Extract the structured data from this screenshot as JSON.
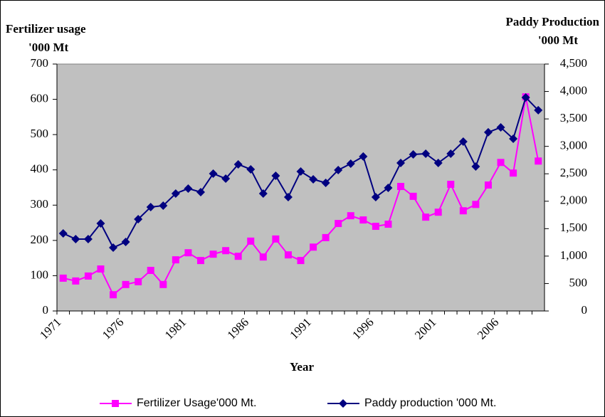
{
  "chart_data": {
    "type": "line",
    "y_label": [
      "Fertilizer usage",
      "'000 Mt"
    ],
    "y2_label": [
      "Paddy Production",
      "'000 Mt"
    ],
    "x_label": "Year",
    "categories": [
      "1971",
      null,
      null,
      null,
      null,
      "1976",
      null,
      null,
      null,
      null,
      "1981",
      null,
      null,
      null,
      null,
      "1986",
      null,
      null,
      null,
      null,
      "1991",
      null,
      null,
      null,
      null,
      "1996",
      null,
      null,
      null,
      null,
      "2001",
      null,
      null,
      null,
      null,
      "2006",
      null,
      null,
      null
    ],
    "series": [
      {
        "name": "Fertilizer Usage'000 Mt.",
        "color": "#ff00ff",
        "marker": "square",
        "axis": "y",
        "values": [
          93,
          85,
          99,
          119,
          46,
          75,
          83,
          115,
          75,
          145,
          165,
          143,
          161,
          171,
          155,
          198,
          153,
          204,
          159,
          143,
          181,
          208,
          248,
          270,
          258,
          240,
          246,
          353,
          325,
          266,
          280,
          359,
          284,
          302,
          357,
          421,
          391,
          607,
          425
        ]
      },
      {
        "name": "Paddy production '000 Mt.",
        "color": "#000080",
        "marker": "diamond",
        "axis": "y2",
        "values": [
          1414,
          1310,
          1310,
          1595,
          1154,
          1258,
          1673,
          1894,
          1920,
          2140,
          2231,
          2166,
          2503,
          2412,
          2672,
          2581,
          2140,
          2464,
          2075,
          2542,
          2399,
          2335,
          2568,
          2685,
          2815,
          2075,
          2244,
          2698,
          2853,
          2866,
          2698,
          2866,
          3087,
          2633,
          3256,
          3346,
          3139,
          3891,
          3658
        ]
      }
    ],
    "ylim": [
      0,
      700
    ],
    "yticks": [
      0,
      100,
      200,
      300,
      400,
      500,
      600,
      700
    ],
    "y2lim": [
      0,
      4500
    ],
    "y2ticks": [
      0,
      500,
      {
        "value": 1000,
        "label": "1,000"
      },
      {
        "value": 1500,
        "label": "1,500"
      },
      {
        "value": 2000,
        "label": "2,000"
      },
      {
        "value": 2500,
        "label": "2,500"
      },
      {
        "value": 3000,
        "label": "3,000"
      },
      {
        "value": 3500,
        "label": "3,500"
      },
      {
        "value": 4000,
        "label": "4,000"
      },
      {
        "value": 4500,
        "label": "4,500"
      }
    ],
    "plot_background": "#c0c0c0",
    "legend": "bottom"
  }
}
